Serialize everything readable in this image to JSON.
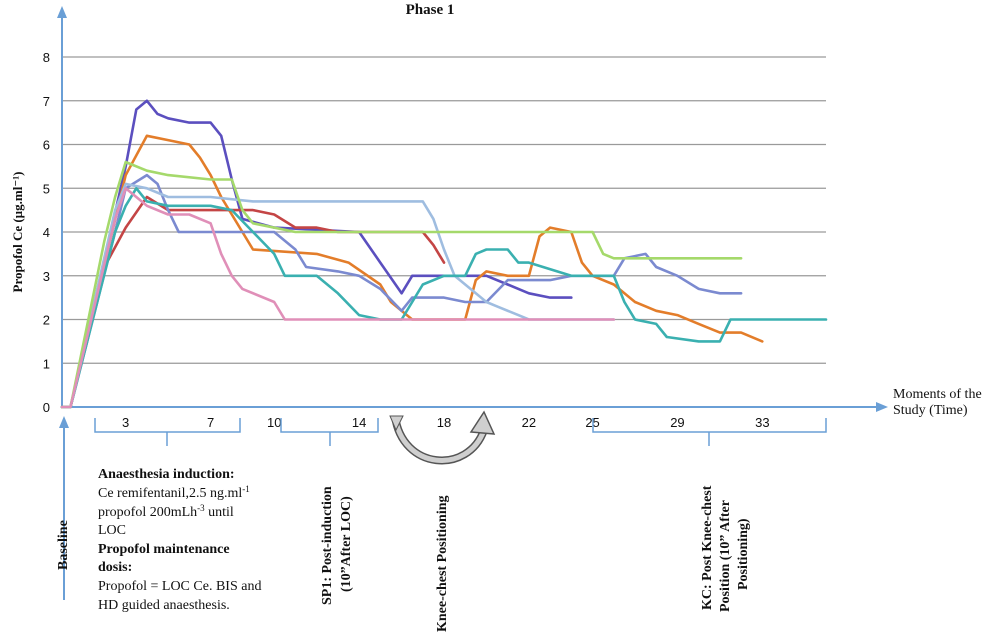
{
  "chart_data": {
    "type": "line",
    "title": "Phase 1",
    "ylabel": "Propofol Ce (µg.ml⁻¹)",
    "xlabel": "Moments of the Study (Time)",
    "ylim": [
      0,
      8
    ],
    "xlim": [
      0,
      36
    ],
    "yticks": [
      "0",
      "1",
      "2",
      "3",
      "4",
      "5",
      "6",
      "7",
      "8"
    ],
    "xtick_labels": [
      {
        "x": 3,
        "label": "3"
      },
      {
        "x": 7,
        "label": "7"
      },
      {
        "x": 10,
        "label": "10"
      },
      {
        "x": 14,
        "label": "14"
      },
      {
        "x": 18,
        "label": "18"
      },
      {
        "x": 22,
        "label": "22"
      },
      {
        "x": 25,
        "label": "25"
      },
      {
        "x": 29,
        "label": "29"
      },
      {
        "x": 33,
        "label": "33"
      }
    ],
    "grid": true,
    "legend": "none",
    "series": [
      {
        "color": "#5b4fbf",
        "points": [
          [
            0,
            0
          ],
          [
            0.4,
            0
          ],
          [
            3,
            5.5
          ],
          [
            3.5,
            6.8
          ],
          [
            4,
            7
          ],
          [
            4.5,
            6.7
          ],
          [
            5,
            6.6
          ],
          [
            6,
            6.5
          ],
          [
            7,
            6.5
          ],
          [
            7.5,
            6.2
          ],
          [
            8,
            5.2
          ],
          [
            8.5,
            4.3
          ],
          [
            10,
            4.1
          ],
          [
            14,
            4
          ],
          [
            15,
            3.3
          ],
          [
            16,
            2.6
          ],
          [
            16.5,
            3
          ],
          [
            18,
            3
          ],
          [
            20,
            3
          ],
          [
            21,
            2.8
          ],
          [
            22,
            2.6
          ],
          [
            23,
            2.5
          ],
          [
            24,
            2.5
          ]
        ]
      },
      {
        "color": "#e37d2a",
        "points": [
          [
            0,
            0
          ],
          [
            0.4,
            0
          ],
          [
            3,
            5.3
          ],
          [
            4,
            6.2
          ],
          [
            5,
            6.1
          ],
          [
            6,
            6
          ],
          [
            6.5,
            5.7
          ],
          [
            7,
            5.3
          ],
          [
            7.5,
            4.8
          ],
          [
            8.5,
            4
          ],
          [
            9,
            3.6
          ],
          [
            12,
            3.5
          ],
          [
            13.5,
            3.3
          ],
          [
            15,
            2.8
          ],
          [
            15.5,
            2.4
          ],
          [
            16.5,
            2
          ],
          [
            19,
            2
          ],
          [
            19.5,
            2.9
          ],
          [
            20,
            3.1
          ],
          [
            21,
            3
          ],
          [
            22,
            3
          ],
          [
            22.5,
            3.9
          ],
          [
            23,
            4.1
          ],
          [
            24,
            4
          ],
          [
            24.5,
            3.3
          ],
          [
            25,
            3
          ],
          [
            26,
            2.8
          ],
          [
            27,
            2.4
          ],
          [
            28,
            2.2
          ],
          [
            29,
            2.1
          ],
          [
            30,
            1.9
          ],
          [
            31,
            1.7
          ],
          [
            32,
            1.7
          ],
          [
            33,
            1.5
          ]
        ]
      },
      {
        "color": "#c44545",
        "points": [
          [
            0,
            0
          ],
          [
            0.4,
            0
          ],
          [
            2,
            3.2
          ],
          [
            3,
            4.1
          ],
          [
            4,
            4.8
          ],
          [
            5,
            4.5
          ],
          [
            7,
            4.5
          ],
          [
            8,
            4.5
          ],
          [
            9,
            4.5
          ],
          [
            10,
            4.4
          ],
          [
            11,
            4.1
          ],
          [
            12,
            4.1
          ],
          [
            13,
            4
          ],
          [
            14,
            4
          ],
          [
            16,
            4
          ],
          [
            17,
            4
          ],
          [
            17.5,
            3.7
          ],
          [
            18,
            3.3
          ]
        ]
      },
      {
        "color": "#7b8ad0",
        "points": [
          [
            0,
            0
          ],
          [
            0.4,
            0
          ],
          [
            2.5,
            4
          ],
          [
            3,
            5
          ],
          [
            4,
            5.3
          ],
          [
            4.5,
            5.1
          ],
          [
            5,
            4.5
          ],
          [
            5.5,
            4
          ],
          [
            7,
            4
          ],
          [
            8,
            4
          ],
          [
            10,
            4
          ],
          [
            11,
            3.6
          ],
          [
            11.5,
            3.2
          ],
          [
            13,
            3.1
          ],
          [
            14,
            3
          ],
          [
            15,
            2.7
          ],
          [
            16,
            2.2
          ],
          [
            16.5,
            2.5
          ],
          [
            18,
            2.5
          ],
          [
            19,
            2.4
          ],
          [
            20,
            2.4
          ],
          [
            21,
            2.9
          ],
          [
            22,
            2.9
          ],
          [
            23,
            2.9
          ],
          [
            24,
            3
          ],
          [
            25,
            3
          ],
          [
            26,
            3
          ],
          [
            26.5,
            3.4
          ],
          [
            27.5,
            3.5
          ],
          [
            28,
            3.2
          ],
          [
            29,
            3
          ],
          [
            30,
            2.7
          ],
          [
            31,
            2.6
          ],
          [
            32,
            2.6
          ]
        ]
      },
      {
        "color": "#9fbde0",
        "points": [
          [
            0,
            0
          ],
          [
            0.4,
            0
          ],
          [
            2.5,
            4.5
          ],
          [
            3,
            5.1
          ],
          [
            4,
            5
          ],
          [
            5,
            4.8
          ],
          [
            7,
            4.8
          ],
          [
            9,
            4.7
          ],
          [
            13,
            4.7
          ],
          [
            16,
            4.7
          ],
          [
            17,
            4.7
          ],
          [
            17.5,
            4.3
          ],
          [
            18,
            3.6
          ],
          [
            18.5,
            3
          ],
          [
            19,
            2.8
          ],
          [
            20,
            2.4
          ],
          [
            20.5,
            2.3
          ],
          [
            21.5,
            2.1
          ],
          [
            22,
            2
          ],
          [
            26,
            2
          ]
        ]
      },
      {
        "color": "#3ab0b0",
        "points": [
          [
            0,
            0
          ],
          [
            0.4,
            0
          ],
          [
            2.5,
            4
          ],
          [
            3,
            4.6
          ],
          [
            3.5,
            5
          ],
          [
            4,
            4.7
          ],
          [
            5,
            4.6
          ],
          [
            7,
            4.6
          ],
          [
            8,
            4.5
          ],
          [
            9,
            4
          ],
          [
            10,
            3.5
          ],
          [
            10.5,
            3
          ],
          [
            12,
            3
          ],
          [
            13,
            2.6
          ],
          [
            14,
            2.1
          ],
          [
            15,
            2
          ],
          [
            16,
            2
          ],
          [
            17,
            2.8
          ],
          [
            18,
            3
          ],
          [
            19,
            3
          ],
          [
            19.5,
            3.5
          ],
          [
            20,
            3.6
          ],
          [
            21,
            3.6
          ],
          [
            21.5,
            3.3
          ],
          [
            22,
            3.3
          ],
          [
            24,
            3
          ],
          [
            26,
            3
          ],
          [
            26.5,
            2.4
          ],
          [
            27,
            2
          ],
          [
            28,
            1.9
          ],
          [
            28.5,
            1.6
          ],
          [
            30,
            1.5
          ],
          [
            31,
            1.5
          ],
          [
            31.5,
            2
          ],
          [
            32,
            2
          ],
          [
            34,
            2
          ],
          [
            36,
            2
          ]
        ]
      },
      {
        "color": "#a5d96b",
        "points": [
          [
            0,
            0
          ],
          [
            0.4,
            0
          ],
          [
            2,
            3.8
          ],
          [
            2.5,
            4.8
          ],
          [
            3,
            5.6
          ],
          [
            4,
            5.4
          ],
          [
            5,
            5.3
          ],
          [
            7,
            5.2
          ],
          [
            8,
            5.2
          ],
          [
            8.5,
            4.5
          ],
          [
            9,
            4.2
          ],
          [
            11,
            4
          ],
          [
            14,
            4
          ],
          [
            17,
            4
          ],
          [
            19,
            4
          ],
          [
            21,
            4
          ],
          [
            22,
            4
          ],
          [
            24,
            4
          ],
          [
            25,
            4
          ],
          [
            25.5,
            3.5
          ],
          [
            26,
            3.4
          ],
          [
            28,
            3.4
          ],
          [
            31,
            3.4
          ],
          [
            32,
            3.4
          ]
        ]
      },
      {
        "color": "#e08fb8",
        "points": [
          [
            0,
            0
          ],
          [
            0.4,
            0
          ],
          [
            2.5,
            4.3
          ],
          [
            3,
            5
          ],
          [
            4,
            4.6
          ],
          [
            5,
            4.4
          ],
          [
            6,
            4.4
          ],
          [
            7,
            4.2
          ],
          [
            7.5,
            3.5
          ],
          [
            8,
            3
          ],
          [
            8.5,
            2.7
          ],
          [
            10,
            2.4
          ],
          [
            10.5,
            2
          ],
          [
            12,
            2
          ],
          [
            14,
            2
          ],
          [
            16,
            2
          ],
          [
            18,
            2
          ],
          [
            20,
            2
          ],
          [
            22,
            2
          ],
          [
            24,
            2
          ],
          [
            26,
            2
          ]
        ]
      }
    ]
  },
  "annotations": {
    "induction_title": "Anaesthesia induction:",
    "induction_line1": "Ce remifentanil,2.5 ng.ml",
    "induction_line1_sup": "-1",
    "induction_line2": "propofol 200mLh",
    "induction_line2_sup": "-3",
    "induction_line2_tail": " until",
    "induction_line3": "LOC",
    "maintenance_title1": "Propofol maintenance",
    "maintenance_title2": "dosis:",
    "maintenance_line1": "Propofol = LOC Ce. BIS and",
    "maintenance_line2": "HD guided anaesthesis.",
    "baseline": "Baseline",
    "sp1_line1": "SP1: Post-induction",
    "sp1_line2": "(10”After LOC)",
    "knee": "Knee-chest Positioning",
    "kc_line1": "KC: Post Knee-chest",
    "kc_line2": "Position (10” After",
    "kc_line3": "Positioning)"
  }
}
